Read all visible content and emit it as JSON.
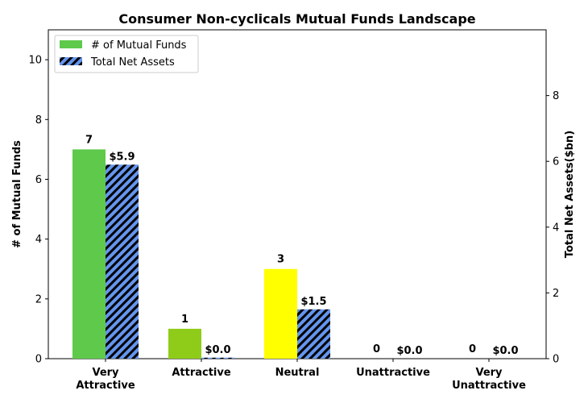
{
  "chart_data": {
    "type": "bar",
    "title": "Consumer Non-cyclicals Mutual Funds Landscape",
    "categories": [
      "Very\nAttractive",
      "Attractive",
      "Neutral",
      "Unattractive",
      "Very\nUnattractive"
    ],
    "left_axis": {
      "label": "# of Mutual Funds",
      "ylim": [
        0,
        11
      ],
      "ticks": [
        0,
        2,
        4,
        6,
        8,
        10
      ]
    },
    "right_axis": {
      "label": "Total Net Assets($bn)",
      "ylim": [
        0,
        10
      ],
      "ticks": [
        0,
        2,
        4,
        6,
        8
      ]
    },
    "series": [
      {
        "name": "# of Mutual Funds",
        "axis": "left",
        "values": [
          7,
          1,
          3,
          0,
          0
        ],
        "labels": [
          "7",
          "1",
          "3",
          "0",
          "0"
        ],
        "colors": [
          "#5ec94b",
          "#8fcc1a",
          "#ffff00",
          "#ff9900",
          "#ff0000"
        ]
      },
      {
        "name": "Total Net Assets",
        "axis": "right",
        "values": [
          5.9,
          0.03,
          1.5,
          0,
          0
        ],
        "labels": [
          "$5.9",
          "$0.0",
          "$1.5",
          "$0.0",
          "$0.0"
        ],
        "color": "#6495ed",
        "hatch": "diagonal"
      }
    ],
    "legend": {
      "position": "top-left",
      "entries": [
        "# of Mutual Funds",
        "Total Net Assets"
      ],
      "swatch_color_funds": "#5ec94b",
      "swatch_color_assets": "#6495ed"
    },
    "grid": false
  }
}
